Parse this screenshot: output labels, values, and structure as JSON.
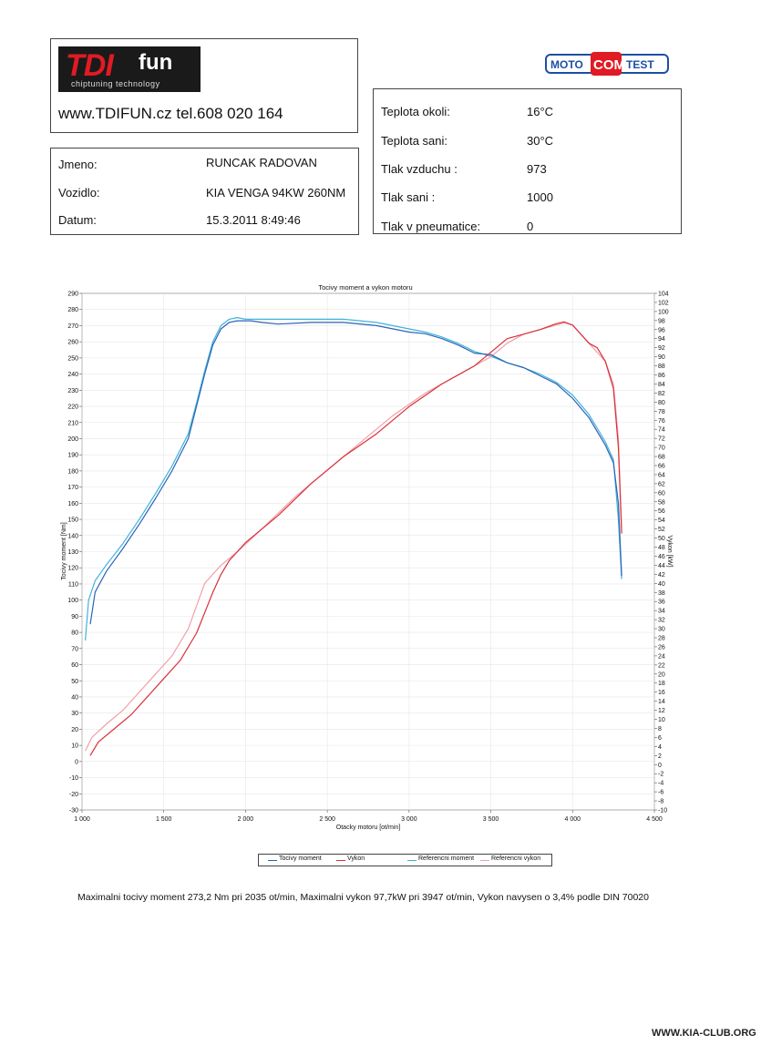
{
  "brand": {
    "logo_main": "TDI",
    "logo_suffix": "fun",
    "logo_tagline": "chiptuning technology",
    "contact": "www.TDIFUN.cz  tel.608 020 164",
    "partner_logo": {
      "left": "MOTO",
      "mid": "COM",
      "right": "TEST"
    }
  },
  "vehicle": {
    "name_label": "Jmeno:",
    "name_value": "RUNCAK RADOVAN",
    "vehicle_label": "Vozidlo:",
    "vehicle_value": "KIA VENGA 94KW 260NM",
    "date_label": "Datum:",
    "date_value": "15.3.2011 8:49:46"
  },
  "conditions": {
    "ambient_label": "Teplota okoli:",
    "ambient_value": "16°C",
    "intake_label": "Teplota sani:",
    "intake_value": "30°C",
    "pressure_label": "Tlak vzduchu :",
    "pressure_value": "973",
    "intake_pressure_label": "Tlak sani :",
    "intake_pressure_value": "1000",
    "tyre_label": "Tlak v pneumatice:",
    "tyre_value": "0"
  },
  "summary": "Maximalni tocivy moment 273,2 Nm pri 2035 ot/min,  Maximalni vykon 97,7kW pri 3947 ot/min,  Vykon navysen o 3,4% podle DIN 70020",
  "watermark": "WWW.KIA-CLUB.ORG",
  "colors": {
    "torque": "#2a63b8",
    "power": "#d8303a",
    "ref_torque": "#3fb3d9",
    "ref_power": "#f0a0a8"
  },
  "chart_data": {
    "type": "line",
    "title": "Tocivy moment a vykon motoru",
    "xlabel": "Otacky motoru [ot/min]",
    "ylabel": "Tocivy moment [Nm]",
    "y2label": "Vykon [kW]",
    "xlim": [
      1000,
      4500
    ],
    "ylim": [
      -30,
      290
    ],
    "y2lim": [
      -10,
      104
    ],
    "x_ticks": [
      1000,
      1500,
      2000,
      2500,
      3000,
      3500,
      4000,
      4500
    ],
    "x_tick_labels": [
      "1 000",
      "1 500",
      "2 000",
      "2 500",
      "3 000",
      "3 500",
      "4 000",
      "4 500"
    ],
    "y_ticks": [
      -30,
      -20,
      -10,
      0,
      10,
      20,
      30,
      40,
      50,
      60,
      70,
      80,
      90,
      100,
      110,
      120,
      130,
      140,
      150,
      160,
      170,
      180,
      190,
      200,
      210,
      220,
      230,
      240,
      250,
      260,
      270,
      280,
      290
    ],
    "y2_ticks": [
      -10,
      -8,
      -6,
      -4,
      -2,
      0,
      2,
      4,
      6,
      8,
      10,
      12,
      14,
      16,
      18,
      20,
      22,
      24,
      26,
      28,
      30,
      32,
      34,
      36,
      38,
      40,
      42,
      44,
      46,
      48,
      50,
      52,
      54,
      56,
      58,
      60,
      62,
      64,
      66,
      68,
      70,
      72,
      74,
      76,
      78,
      80,
      82,
      84,
      86,
      88,
      90,
      92,
      94,
      96,
      98,
      100,
      102,
      104
    ],
    "grid": true,
    "legend_position": "bottom",
    "series": [
      {
        "name": "Tocivy moment",
        "axis": "left",
        "color": "#2a63b8",
        "x": [
          1050,
          1080,
          1150,
          1250,
          1350,
          1450,
          1550,
          1650,
          1700,
          1750,
          1800,
          1850,
          1900,
          1950,
          2035,
          2100,
          2200,
          2400,
          2600,
          2800,
          3000,
          3100,
          3200,
          3300,
          3400,
          3500,
          3600,
          3700,
          3800,
          3900,
          4000,
          4100,
          4200,
          4250,
          4280,
          4300
        ],
        "y": [
          85,
          105,
          118,
          132,
          147,
          163,
          180,
          200,
          220,
          240,
          258,
          268,
          272,
          273,
          273,
          272,
          271,
          272,
          272,
          270,
          266,
          265,
          262,
          258,
          253,
          252,
          247,
          244,
          239,
          234,
          225,
          213,
          196,
          185,
          160,
          115
        ]
      },
      {
        "name": "Vykon",
        "axis": "right",
        "color": "#d8303a",
        "x": [
          1050,
          1100,
          1200,
          1300,
          1400,
          1500,
          1600,
          1700,
          1800,
          1850,
          1900,
          2000,
          2200,
          2400,
          2600,
          2800,
          3000,
          3200,
          3400,
          3500,
          3600,
          3700,
          3800,
          3900,
          3947,
          4000,
          4050,
          4100,
          4150,
          4200,
          4250,
          4280,
          4300
        ],
        "y": [
          2,
          5,
          8,
          11,
          15,
          19,
          23,
          29,
          38,
          42,
          45,
          49,
          55,
          62,
          68,
          73,
          79,
          84,
          88,
          91,
          94,
          95,
          96,
          97.3,
          97.7,
          97,
          95,
          93,
          92,
          89,
          83,
          70,
          51
        ]
      },
      {
        "name": "Referencni moment",
        "axis": "left",
        "color": "#3fb3d9",
        "x": [
          1020,
          1040,
          1080,
          1150,
          1250,
          1350,
          1450,
          1550,
          1650,
          1700,
          1750,
          1800,
          1850,
          1900,
          1950,
          2000,
          2100,
          2200,
          2400,
          2600,
          2800,
          3000,
          3100,
          3200,
          3300,
          3400,
          3500,
          3600,
          3700,
          3800,
          3900,
          4000,
          4100,
          4200,
          4250,
          4280,
          4300
        ],
        "y": [
          75,
          100,
          112,
          122,
          135,
          150,
          166,
          183,
          203,
          222,
          242,
          260,
          270,
          274,
          275,
          274,
          274,
          274,
          274,
          274,
          272,
          268,
          266,
          263,
          259,
          254,
          251,
          247,
          244,
          240,
          235,
          227,
          215,
          198,
          187,
          150,
          113
        ]
      },
      {
        "name": "Referencni vykon",
        "axis": "right",
        "color": "#f0a0a8",
        "x": [
          1020,
          1060,
          1150,
          1250,
          1350,
          1450,
          1550,
          1650,
          1750,
          1850,
          1950,
          2100,
          2300,
          2500,
          2700,
          2900,
          3100,
          3300,
          3500,
          3600,
          3700,
          3800,
          3900,
          3950,
          4000,
          4100,
          4200,
          4250,
          4280,
          4300
        ],
        "y": [
          3,
          6,
          9,
          12,
          16,
          20,
          24,
          30,
          40,
          44,
          47,
          52,
          59,
          65,
          71,
          77,
          82,
          86,
          90,
          93,
          95,
          96,
          97,
          97.5,
          97,
          93,
          89,
          84,
          72,
          52
        ]
      }
    ]
  }
}
